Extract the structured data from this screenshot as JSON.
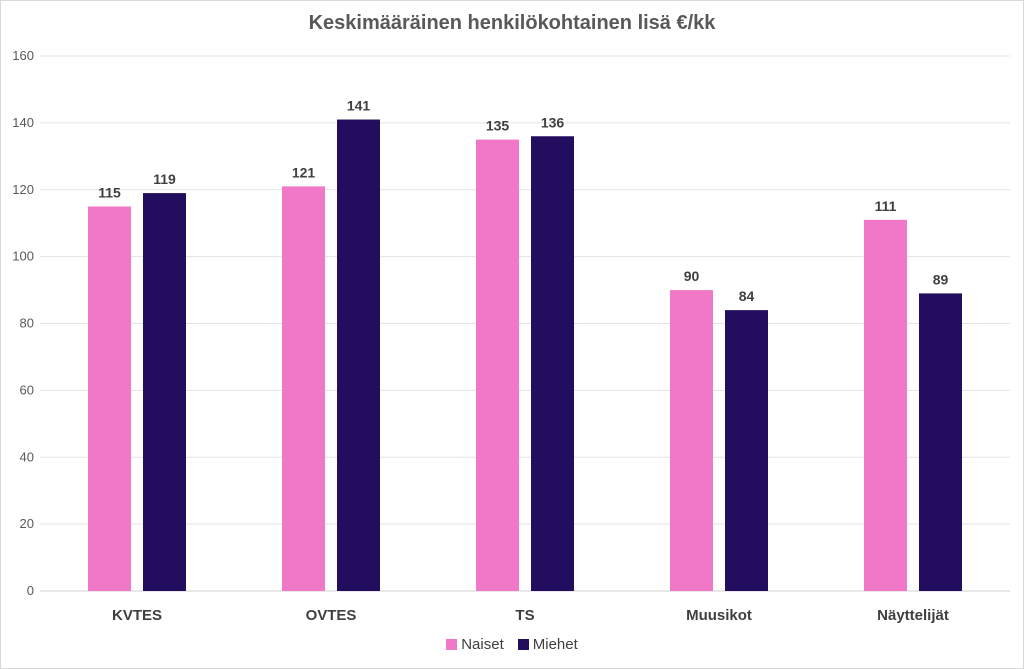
{
  "chart_data": {
    "type": "bar",
    "title": "Keskimääräinen henkilökohtainen lisä €/kk",
    "categories": [
      "KVTES",
      "OVTES",
      "TS",
      "Muusikot",
      "Näyttelijät"
    ],
    "series": [
      {
        "name": "Naiset",
        "values": [
          115,
          121,
          135,
          90,
          111
        ],
        "color": "#F178C6"
      },
      {
        "name": "Miehet",
        "values": [
          119,
          141,
          136,
          84,
          89
        ],
        "color": "#230D5E"
      }
    ],
    "ylim": [
      0,
      160
    ],
    "yticks": [
      0,
      20,
      40,
      60,
      80,
      100,
      120,
      140,
      160
    ],
    "grid": true,
    "legend": "bottom",
    "data_labels": true
  }
}
